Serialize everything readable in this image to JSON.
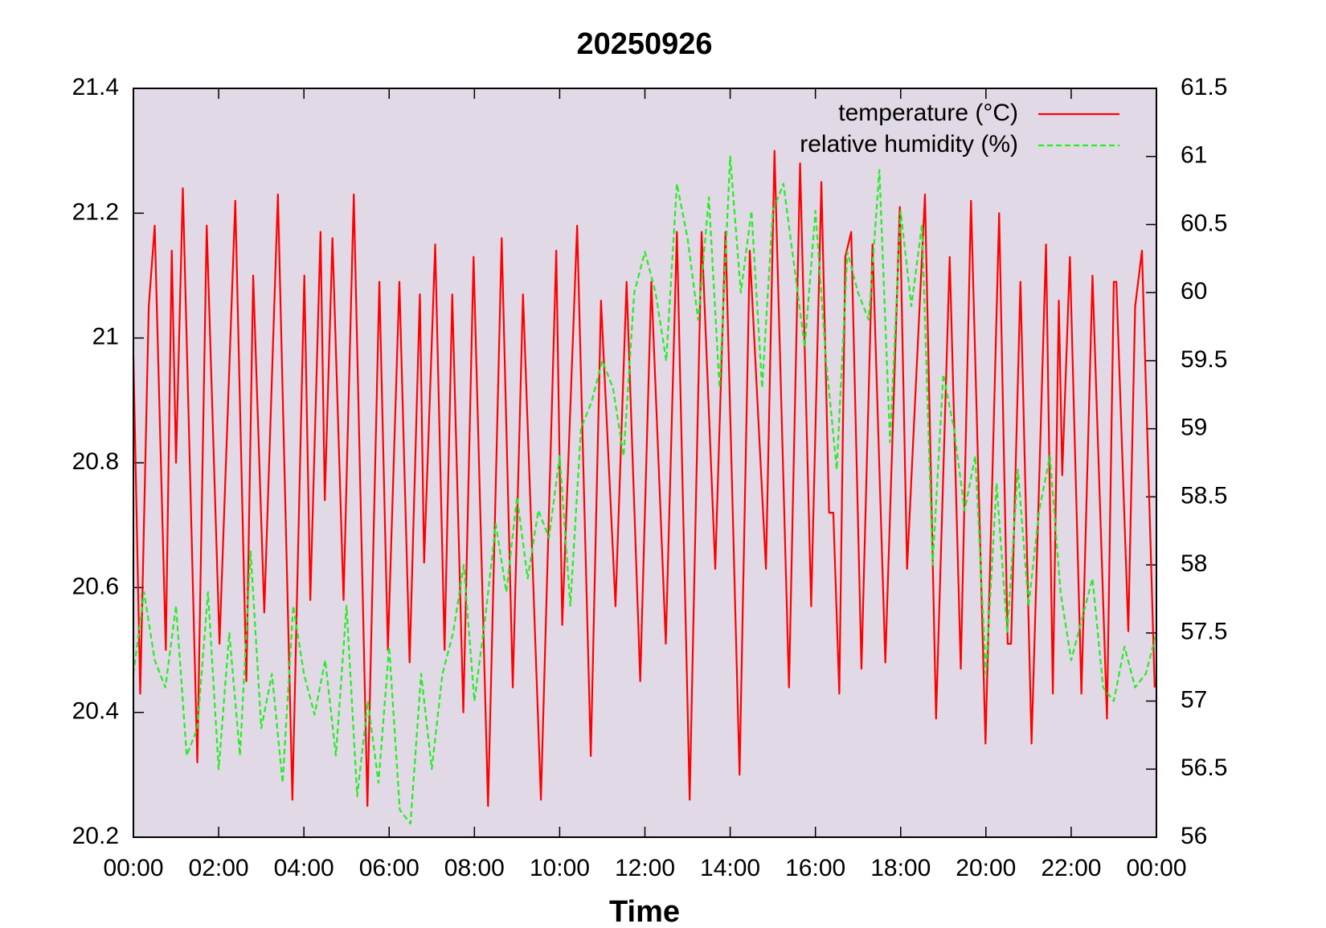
{
  "chart_data": {
    "type": "line",
    "title": "20250926",
    "xlabel": "Time",
    "xlim": [
      0,
      24
    ],
    "xticks": [
      {
        "value": 0,
        "label": "00:00"
      },
      {
        "value": 2,
        "label": "02:00"
      },
      {
        "value": 4,
        "label": "04:00"
      },
      {
        "value": 6,
        "label": "06:00"
      },
      {
        "value": 8,
        "label": "08:00"
      },
      {
        "value": 10,
        "label": "10:00"
      },
      {
        "value": 12,
        "label": "12:00"
      },
      {
        "value": 14,
        "label": "14:00"
      },
      {
        "value": 16,
        "label": "16:00"
      },
      {
        "value": 18,
        "label": "18:00"
      },
      {
        "value": 20,
        "label": "20:00"
      },
      {
        "value": 22,
        "label": "22:00"
      },
      {
        "value": 24,
        "label": "00:00"
      }
    ],
    "ylim": [
      20.2,
      21.4
    ],
    "yticks": [
      20.2,
      20.4,
      20.6,
      20.8,
      21,
      21.2,
      21.4
    ],
    "y2lim": [
      56,
      61.5
    ],
    "y2ticks": [
      56,
      56.5,
      57,
      57.5,
      58,
      58.5,
      59,
      59.5,
      60,
      60.5,
      61,
      61.5
    ],
    "background": "#e1d9e5",
    "legend": "top-right",
    "series": [
      {
        "name": "temperature (°C)",
        "color": "#ff0000",
        "linestyle": "solid",
        "x": [
          0,
          0.16,
          0.36,
          0.5,
          0.76,
          0.9,
          1.0,
          1.16,
          1.5,
          1.72,
          2.02,
          2.39,
          2.65,
          2.81,
          3.07,
          3.39,
          3.73,
          4.01,
          4.15,
          4.39,
          4.49,
          4.67,
          4.93,
          5.17,
          5.49,
          5.77,
          5.97,
          6.24,
          6.48,
          6.72,
          6.82,
          7.08,
          7.3,
          7.48,
          7.74,
          7.98,
          8.32,
          8.64,
          8.9,
          9.14,
          9.56,
          9.92,
          10.06,
          10.41,
          10.73,
          10.97,
          11.31,
          11.57,
          11.89,
          12.15,
          12.49,
          12.75,
          13.05,
          13.33,
          13.65,
          13.89,
          14.22,
          14.46,
          14.84,
          15.04,
          15.38,
          15.64,
          15.9,
          16.14,
          16.32,
          16.42,
          16.56,
          16.7,
          16.84,
          17.08,
          17.34,
          17.64,
          17.98,
          18.15,
          18.57,
          18.83,
          19.15,
          19.41,
          19.65,
          19.99,
          20.31,
          20.51,
          20.59,
          20.81,
          21.07,
          21.41,
          21.57,
          21.71,
          21.79,
          21.97,
          22.24,
          22.5,
          22.84,
          23.0,
          23.06,
          23.34,
          23.5,
          23.66,
          23.96
        ],
        "values": [
          20.97,
          20.43,
          21.05,
          21.18,
          20.5,
          21.14,
          20.8,
          21.24,
          20.32,
          21.18,
          20.51,
          21.22,
          20.45,
          21.1,
          20.56,
          21.23,
          20.26,
          21.1,
          20.58,
          21.17,
          20.74,
          21.16,
          20.58,
          21.23,
          20.25,
          21.09,
          20.5,
          21.09,
          20.48,
          21.07,
          20.64,
          21.15,
          20.5,
          21.07,
          20.4,
          21.13,
          20.25,
          21.16,
          20.44,
          21.07,
          20.26,
          21.14,
          20.54,
          21.18,
          20.33,
          21.06,
          20.57,
          21.09,
          20.45,
          21.09,
          20.51,
          21.17,
          20.26,
          21.17,
          20.63,
          21.17,
          20.3,
          21.14,
          20.63,
          21.3,
          20.44,
          21.28,
          20.57,
          21.25,
          20.72,
          20.72,
          20.43,
          21.13,
          21.17,
          20.47,
          21.15,
          20.48,
          21.21,
          20.63,
          21.23,
          20.39,
          21.13,
          20.47,
          21.22,
          20.35,
          21.2,
          20.51,
          20.51,
          21.09,
          20.35,
          21.15,
          20.43,
          21.06,
          20.78,
          21.13,
          20.43,
          21.1,
          20.39,
          21.09,
          21.09,
          20.53,
          21.05,
          21.14,
          20.44
        ]
      },
      {
        "name": "relative humidity (%)",
        "color": "#22ee22",
        "linestyle": "dashed",
        "axis": "y2",
        "x": [
          0,
          0.25,
          0.5,
          0.75,
          1,
          1.25,
          1.5,
          1.75,
          2,
          2.25,
          2.5,
          2.75,
          3,
          3.25,
          3.5,
          3.75,
          4,
          4.25,
          4.5,
          4.75,
          5,
          5.25,
          5.5,
          5.75,
          6,
          6.25,
          6.5,
          6.75,
          7,
          7.25,
          7.5,
          7.75,
          8,
          8.25,
          8.5,
          8.75,
          9,
          9.25,
          9.5,
          9.75,
          10,
          10.25,
          10.5,
          10.75,
          11,
          11.25,
          11.5,
          11.75,
          12,
          12.25,
          12.5,
          12.75,
          13,
          13.25,
          13.5,
          13.75,
          14,
          14.25,
          14.5,
          14.75,
          15,
          15.25,
          15.5,
          15.75,
          16,
          16.25,
          16.5,
          16.75,
          17,
          17.25,
          17.5,
          17.75,
          18,
          18.25,
          18.5,
          18.75,
          19,
          19.25,
          19.5,
          19.75,
          20,
          20.25,
          20.5,
          20.75,
          21,
          21.25,
          21.5,
          21.75,
          22,
          22.25,
          22.5,
          22.75,
          23,
          23.25,
          23.5,
          23.75,
          24
        ],
        "values": [
          57.2,
          57.8,
          57.3,
          57.1,
          57.7,
          56.6,
          56.8,
          57.8,
          56.5,
          57.5,
          56.6,
          58.1,
          56.8,
          57.2,
          56.4,
          57.7,
          57.2,
          56.9,
          57.3,
          56.6,
          57.7,
          56.3,
          57.0,
          56.4,
          57.4,
          56.2,
          56.1,
          57.2,
          56.5,
          57.2,
          57.5,
          58.0,
          57.0,
          57.6,
          58.3,
          57.8,
          58.5,
          57.9,
          58.4,
          58.2,
          58.8,
          57.7,
          59.0,
          59.2,
          59.5,
          59.3,
          58.8,
          60.0,
          60.3,
          60.0,
          59.5,
          60.8,
          60.4,
          59.8,
          60.7,
          59.3,
          61.0,
          60.0,
          60.6,
          59.3,
          60.6,
          60.8,
          60.2,
          59.6,
          60.6,
          59.5,
          58.7,
          60.3,
          60.0,
          59.8,
          60.9,
          58.9,
          60.6,
          59.9,
          60.5,
          58.0,
          59.4,
          59.0,
          58.4,
          58.8,
          57.2,
          58.6,
          57.5,
          58.7,
          57.7,
          58.4,
          58.8,
          57.8,
          57.3,
          57.6,
          57.9,
          57.1,
          57.0,
          57.4,
          57.1,
          57.2,
          57.5
        ]
      }
    ]
  }
}
